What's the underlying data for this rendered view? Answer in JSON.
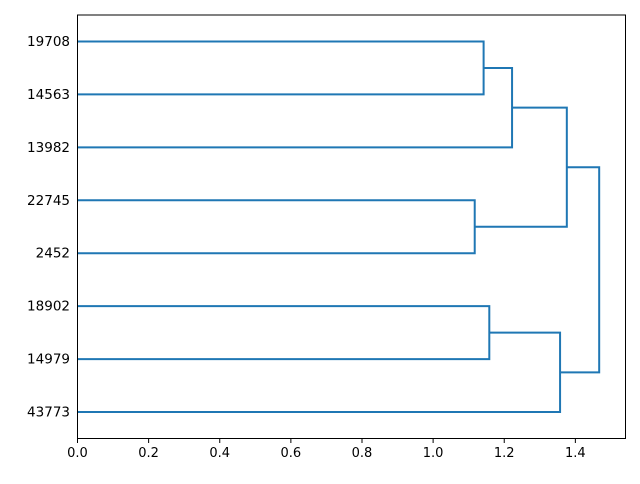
{
  "chart_data": {
    "type": "dendrogram",
    "orientation": "horizontal-leaves-left",
    "leaves": [
      "19708",
      "14563",
      "13982",
      "22745",
      "2452",
      "18902",
      "14979",
      "43773"
    ],
    "tree": {
      "distance": 1.467,
      "children": [
        {
          "distance": 1.376,
          "children": [
            {
              "distance": 1.222,
              "children": [
                {
                  "distance": 1.142,
                  "children": [
                    {
                      "leaf": "19708"
                    },
                    {
                      "leaf": "14563"
                    }
                  ]
                },
                {
                  "leaf": "13982"
                }
              ]
            },
            {
              "distance": 1.117,
              "children": [
                {
                  "leaf": "22745"
                },
                {
                  "leaf": "2452"
                }
              ]
            }
          ]
        },
        {
          "distance": 1.357,
          "children": [
            {
              "distance": 1.158,
              "children": [
                {
                  "leaf": "18902"
                },
                {
                  "leaf": "14979"
                }
              ]
            },
            {
              "leaf": "43773"
            }
          ]
        }
      ]
    },
    "x_ticks": [
      "0.0",
      "0.2",
      "0.4",
      "0.6",
      "0.8",
      "1.0",
      "1.2",
      "1.4"
    ],
    "x_tick_values": [
      0,
      0.2,
      0.4,
      0.6,
      0.8,
      1.0,
      1.2,
      1.4
    ],
    "xlim": [
      0,
      1.541
    ],
    "grid": false,
    "legend": false,
    "line_color": "#1f77b4",
    "spine_color": "#000000",
    "text_color": "#000000"
  }
}
